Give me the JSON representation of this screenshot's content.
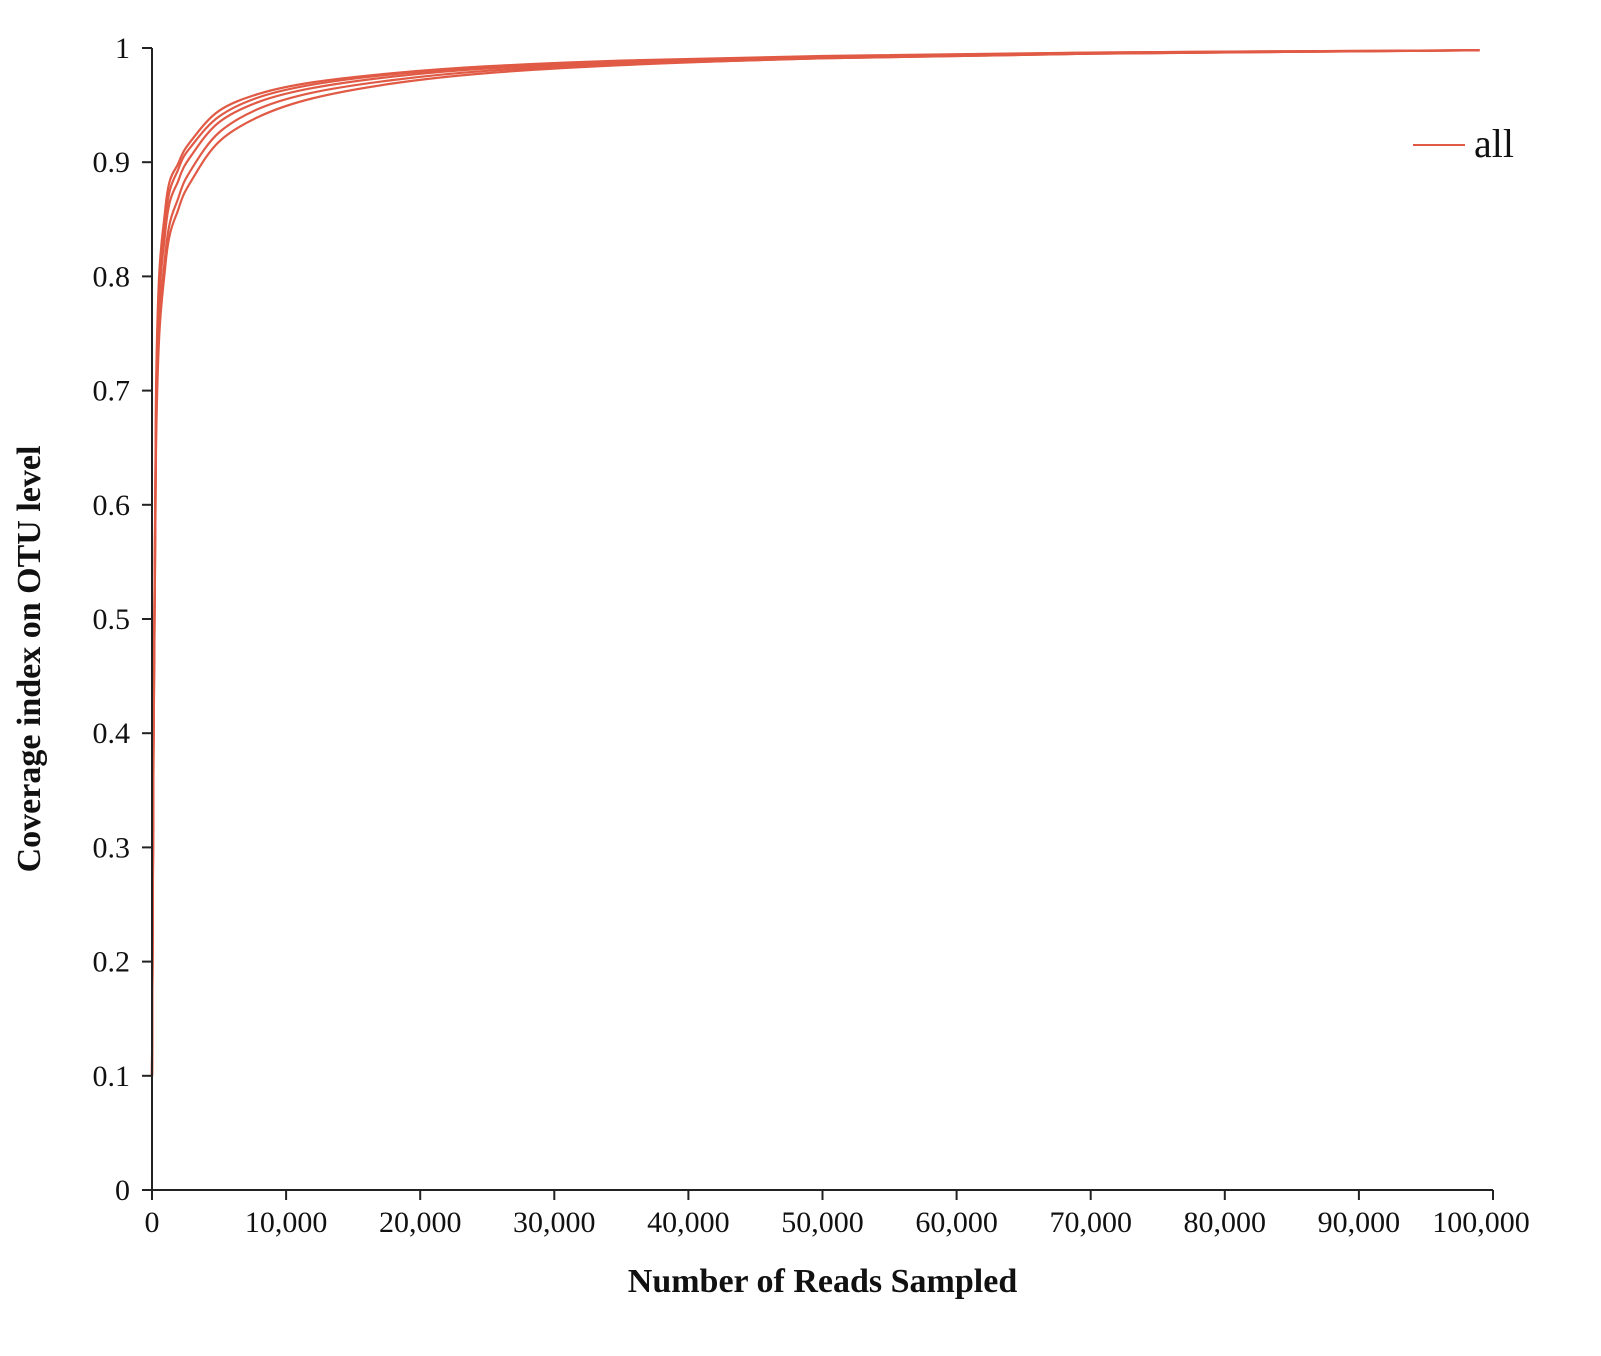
{
  "chart_data": {
    "type": "line",
    "title": "",
    "xlabel": "Number of Reads Sampled",
    "ylabel": "Coverage index on OTU level",
    "xlim": [
      0,
      100000
    ],
    "ylim": [
      0,
      1
    ],
    "x_ticks": [
      0,
      10000,
      20000,
      30000,
      40000,
      50000,
      60000,
      70000,
      80000,
      90000,
      100000
    ],
    "x_tick_labels": [
      "0",
      "10,000",
      "20,000",
      "30,000",
      "40,000",
      "50,000",
      "60,000",
      "70,000",
      "80,000",
      "90,000",
      "100,000"
    ],
    "y_ticks": [
      0,
      0.1,
      0.2,
      0.3,
      0.4,
      0.5,
      0.6,
      0.7,
      0.8,
      0.9,
      1
    ],
    "y_tick_labels": [
      "0",
      "0.1",
      "0.2",
      "0.3",
      "0.4",
      "0.5",
      "0.6",
      "0.7",
      "0.8",
      "0.9",
      "1"
    ],
    "grid": false,
    "legend": {
      "position": "top-right",
      "entries": [
        {
          "label": "all",
          "color": "#e05a45"
        }
      ]
    },
    "series": [
      {
        "color": "#e05a45",
        "x": [
          0,
          300,
          1000,
          2000,
          3000,
          5000,
          8000,
          12000,
          18000,
          25000,
          35000,
          50000,
          70000,
          99000
        ],
        "y": [
          0.1,
          0.7,
          0.86,
          0.9,
          0.92,
          0.945,
          0.96,
          0.97,
          0.978,
          0.984,
          0.989,
          0.993,
          0.996,
          0.998
        ]
      },
      {
        "color": "#e05a45",
        "x": [
          0,
          300,
          1000,
          2000,
          3000,
          5000,
          8000,
          12000,
          18000,
          25000,
          35000,
          50000,
          70000,
          99000
        ],
        "y": [
          0.1,
          0.69,
          0.85,
          0.895,
          0.915,
          0.94,
          0.957,
          0.968,
          0.977,
          0.983,
          0.988,
          0.992,
          0.996,
          0.998
        ]
      },
      {
        "color": "#e05a45",
        "x": [
          0,
          300,
          1000,
          2000,
          3000,
          5000,
          8000,
          12000,
          18000,
          25000,
          35000,
          50000,
          70000,
          99000
        ],
        "y": [
          0.1,
          0.68,
          0.84,
          0.885,
          0.907,
          0.935,
          0.953,
          0.965,
          0.975,
          0.982,
          0.987,
          0.992,
          0.995,
          0.998
        ]
      },
      {
        "color": "#e05a45",
        "x": [
          0,
          300,
          1000,
          2000,
          3000,
          5000,
          8000,
          12000,
          18000,
          25000,
          35000,
          50000,
          70000,
          99000
        ],
        "y": [
          0.1,
          0.66,
          0.82,
          0.87,
          0.895,
          0.926,
          0.947,
          0.961,
          0.972,
          0.98,
          0.986,
          0.991,
          0.995,
          0.998
        ]
      },
      {
        "color": "#e05a45",
        "x": [
          0,
          300,
          1000,
          2000,
          3000,
          5000,
          8000,
          12000,
          18000,
          25000,
          35000,
          50000,
          70000,
          99000
        ],
        "y": [
          0.1,
          0.65,
          0.81,
          0.86,
          0.885,
          0.918,
          0.94,
          0.956,
          0.969,
          0.978,
          0.985,
          0.991,
          0.995,
          0.998
        ]
      }
    ]
  }
}
